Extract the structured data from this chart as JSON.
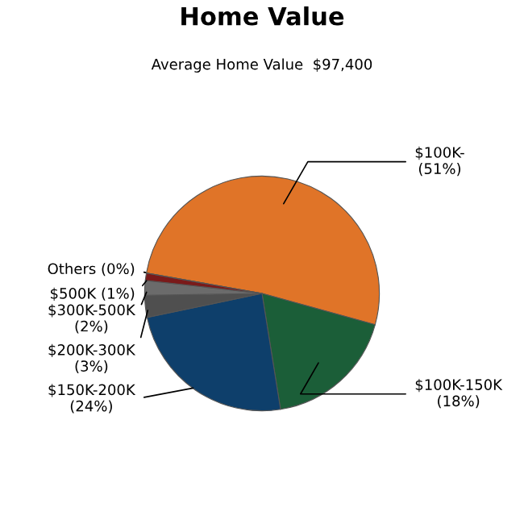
{
  "chart_data": {
    "type": "pie",
    "title": "Home Value",
    "subtitle": "Average Home Value  $97,400",
    "categories": [
      "$100K-",
      "$100K-150K",
      "$150K-200K",
      "$200K-300K",
      "$300K-500K",
      "$500K",
      "Others"
    ],
    "values": [
      51,
      18,
      24,
      3,
      2,
      1,
      0
    ],
    "colors": [
      "#e07428",
      "#1b5e38",
      "#0e3f6b",
      "#4f4f4f",
      "#6b6b6b",
      "#7a1a1a",
      "#35b5d0"
    ],
    "value_labels": [
      "(51%)",
      "(18%)",
      "(24%)",
      "(3%)",
      "(2%)",
      "(1%)",
      "(0%)"
    ]
  }
}
